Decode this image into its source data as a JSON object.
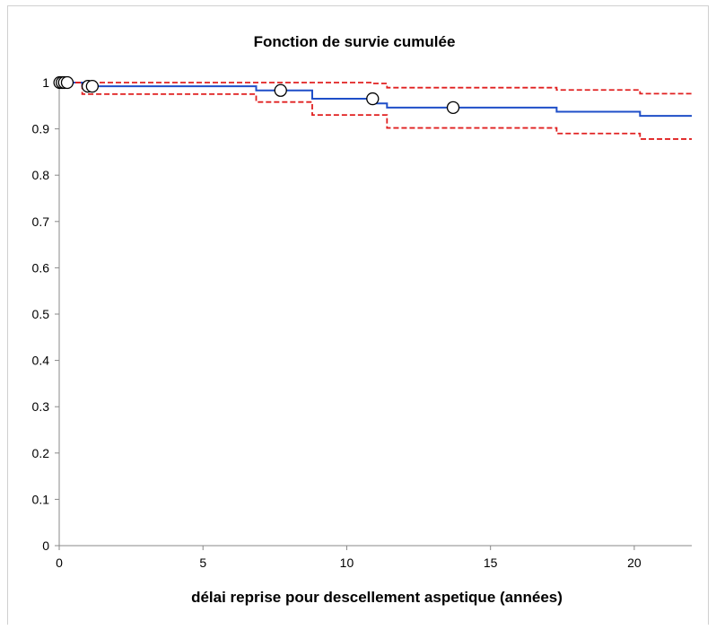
{
  "chart_data": {
    "type": "line",
    "title": "Fonction de survie cumulée",
    "xlabel": "délai reprise pour descellement aspetique (années)",
    "ylabel": "",
    "xlim": [
      0,
      22
    ],
    "ylim": [
      0,
      1
    ],
    "x_ticks": [
      "0",
      "5",
      "10",
      "15",
      "20"
    ],
    "y_ticks": [
      "0",
      "0.1",
      "0.2",
      "0.3",
      "0.4",
      "0.5",
      "0.6",
      "0.7",
      "0.8",
      "0.9",
      "1"
    ],
    "grid": false,
    "legend": "none",
    "series": [
      {
        "style": "solid",
        "color": "#1f4fc8",
        "steps": [
          [
            0,
            1.0
          ],
          [
            0.8,
            0.992
          ],
          [
            6.85,
            0.983
          ],
          [
            8.8,
            0.965
          ],
          [
            10.9,
            0.955
          ],
          [
            11.4,
            0.946
          ],
          [
            17.3,
            0.937
          ],
          [
            20.2,
            0.928
          ],
          [
            22,
            0.928
          ]
        ]
      },
      {
        "style": "dashed",
        "color": "#e02020",
        "steps": [
          [
            0,
            1.0
          ],
          [
            0.8,
            0.975
          ],
          [
            6.85,
            0.958
          ],
          [
            8.8,
            0.93
          ],
          [
            11.4,
            0.902
          ],
          [
            17.3,
            0.89
          ],
          [
            20.2,
            0.878
          ],
          [
            22,
            0.878
          ]
        ]
      },
      {
        "style": "dashed",
        "color": "#e02020",
        "steps": [
          [
            0,
            1.0
          ],
          [
            10.9,
            0.998
          ],
          [
            11.4,
            0.989
          ],
          [
            17.3,
            0.984
          ],
          [
            20.2,
            0.976
          ],
          [
            22,
            0.976
          ]
        ]
      }
    ],
    "censored": [
      {
        "x": 0.02,
        "y": 1.0
      },
      {
        "x": 0.1,
        "y": 1.0
      },
      {
        "x": 0.18,
        "y": 1.0
      },
      {
        "x": 0.28,
        "y": 1.0
      },
      {
        "x": 1.0,
        "y": 0.992
      },
      {
        "x": 1.15,
        "y": 0.992
      },
      {
        "x": 7.7,
        "y": 0.983
      },
      {
        "x": 10.9,
        "y": 0.965
      },
      {
        "x": 13.7,
        "y": 0.946
      }
    ]
  }
}
